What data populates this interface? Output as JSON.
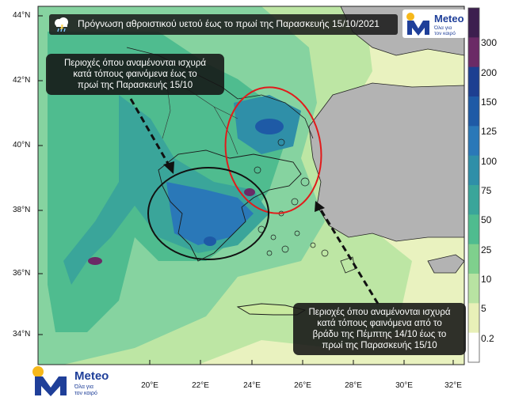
{
  "title": "Πρόγνωση αθροιστικού υετού έως το πρωί της Παρασκευής 15/10/2021",
  "title_icon": "rain-cloud-icon",
  "callout_west": {
    "lines": [
      "Περιοχές όπου αναμένονται ισχυρά",
      "κατά τόπους φαινόμενα έως το",
      "πρωί της Παρασκευής 15/10"
    ]
  },
  "callout_east": {
    "lines": [
      "Περιοχές όπου αναμένονται ισχυρά",
      "κατά τόπους φαινόμενα  από το",
      "βράδυ της Πέμπτης 14/10 έως το",
      "πρωί της Παρασκευής 15/10"
    ]
  },
  "latitudes": [
    "44°N",
    "42°N",
    "40°N",
    "38°N",
    "36°N",
    "34°N"
  ],
  "longitudes": [
    "20°E",
    "22°E",
    "24°E",
    "26°E",
    "28°E",
    "30°E",
    "32°E"
  ],
  "colorbar": {
    "labels": [
      "300",
      "200",
      "150",
      "125",
      "100",
      "75",
      "50",
      "25",
      "10",
      "5",
      "0.2"
    ],
    "colors": [
      "#3d1f4f",
      "#6b2a66",
      "#1d3f91",
      "#1e5aa6",
      "#2a78b8",
      "#2f8fa8",
      "#3aa59a",
      "#4fbc8f",
      "#7fd08d",
      "#b8e3a2",
      "#e8f0b8",
      "#ffffff"
    ]
  },
  "logo": {
    "word": "Meteo",
    "tagline_lines": [
      "Όλα για",
      "τον καιρό"
    ],
    "brand_blue": "#1f3f99",
    "sun_yellow": "#f6b81b"
  }
}
